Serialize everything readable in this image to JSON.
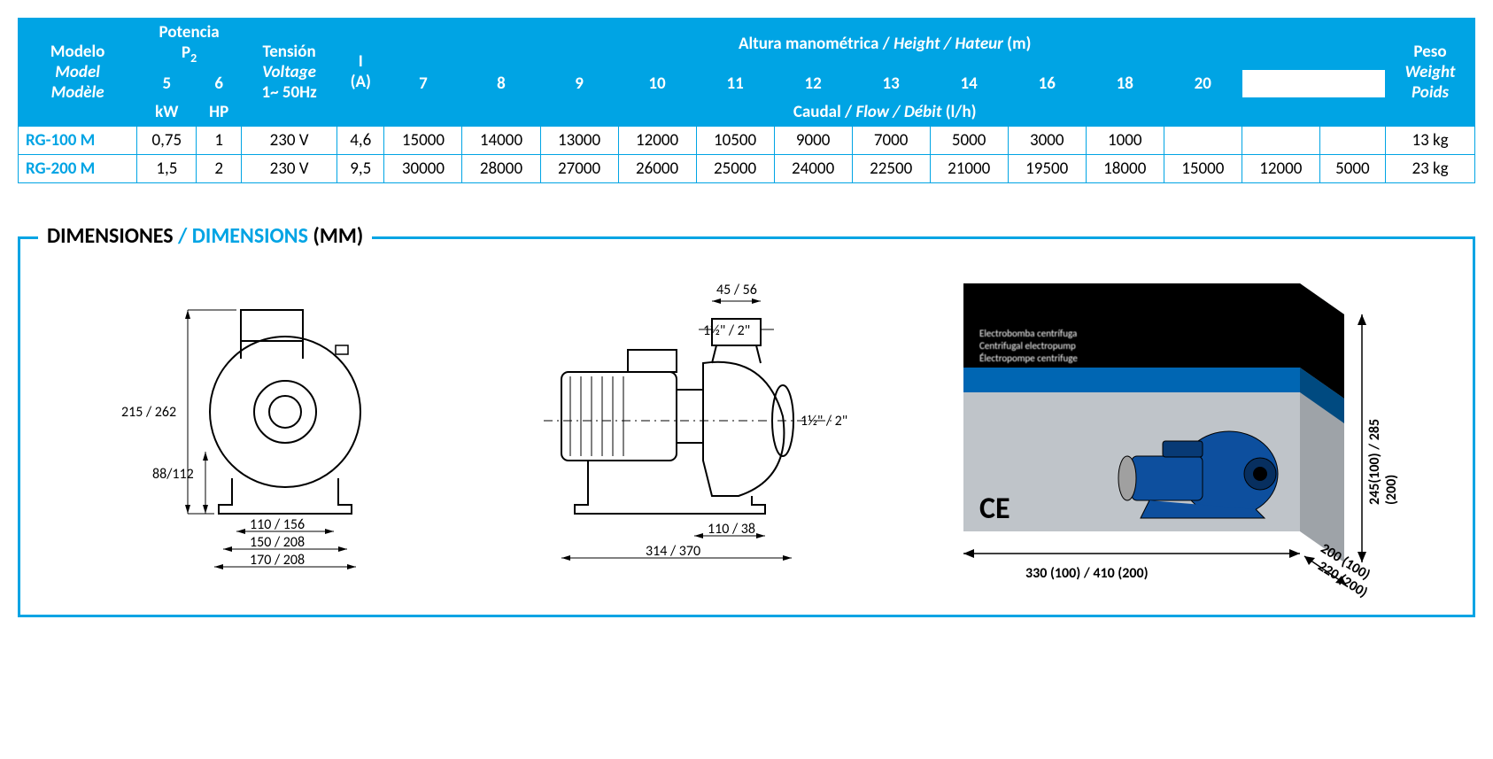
{
  "table": {
    "headers": {
      "model": {
        "es": "Modelo",
        "en": "Model",
        "fr": "Modèle"
      },
      "power": {
        "es": "Potencia",
        "sub": "P",
        "subnum": "2",
        "kw": "kW",
        "hp": "HP"
      },
      "voltage": {
        "es": "Tensión",
        "en": "Voltage",
        "freq": "1~ 50Hz"
      },
      "current": {
        "label": "I",
        "unit": "(A)"
      },
      "height": {
        "label": "Altura manométrica / ",
        "en": "Height / Hateur",
        "unit": " (m)"
      },
      "flow": {
        "label": "Caudal / ",
        "en": "Flow / Débit",
        "unit": " (l/h)"
      },
      "weight": {
        "es": "Peso",
        "en": "Weight",
        "fr": "Poids"
      },
      "height_values": [
        "5",
        "6",
        "7",
        "8",
        "9",
        "10",
        "11",
        "12",
        "13",
        "14",
        "16",
        "18",
        "20"
      ]
    },
    "rows": [
      {
        "model": "RG-100 M",
        "kw": "0,75",
        "hp": "1",
        "voltage": "230 V",
        "current": "4,6",
        "flow": [
          "15000",
          "14000",
          "13000",
          "12000",
          "10500",
          "9000",
          "7000",
          "5000",
          "3000",
          "1000",
          "",
          "",
          ""
        ],
        "weight": "13 kg"
      },
      {
        "model": "RG-200 M",
        "kw": "1,5",
        "hp": "2",
        "voltage": "230 V",
        "current": "9,5",
        "flow": [
          "30000",
          "28000",
          "27000",
          "26000",
          "25000",
          "24000",
          "22500",
          "21000",
          "19500",
          "18000",
          "15000",
          "12000",
          "5000"
        ],
        "weight": "23 kg"
      }
    ]
  },
  "dimensions": {
    "title_es": "DIMENSIONES",
    "title_sep": " / ",
    "title_en": "DIMENSIONS",
    "title_unit": " (MM)",
    "front": {
      "h_total": "215 / 262",
      "h_base": "88/112",
      "w1": "110 / 156",
      "w2": "150 / 208",
      "w3": "170 / 208"
    },
    "side": {
      "top_w": "45 / 56",
      "top_thread": "1½\" / 2\"",
      "side_thread": "1½\" / 2\"",
      "base_w": "110 / 38",
      "length": "314 / 370"
    },
    "package": {
      "text1": "Electrobomba centrífuga",
      "text2": "Centrifugal electropump",
      "text3": "Électropompe centrifuge",
      "ce": "CE",
      "width": "330 (100) / 410 (200)",
      "depth1": "200 (100)",
      "depth2": "220 (200)",
      "height": "245(100) / 285 (200)"
    }
  },
  "colors": {
    "brand_blue": "#00a4e4",
    "dark_blue": "#0066b3",
    "pump_blue": "#0d4f9e",
    "box_gray": "#bfc4c9"
  }
}
